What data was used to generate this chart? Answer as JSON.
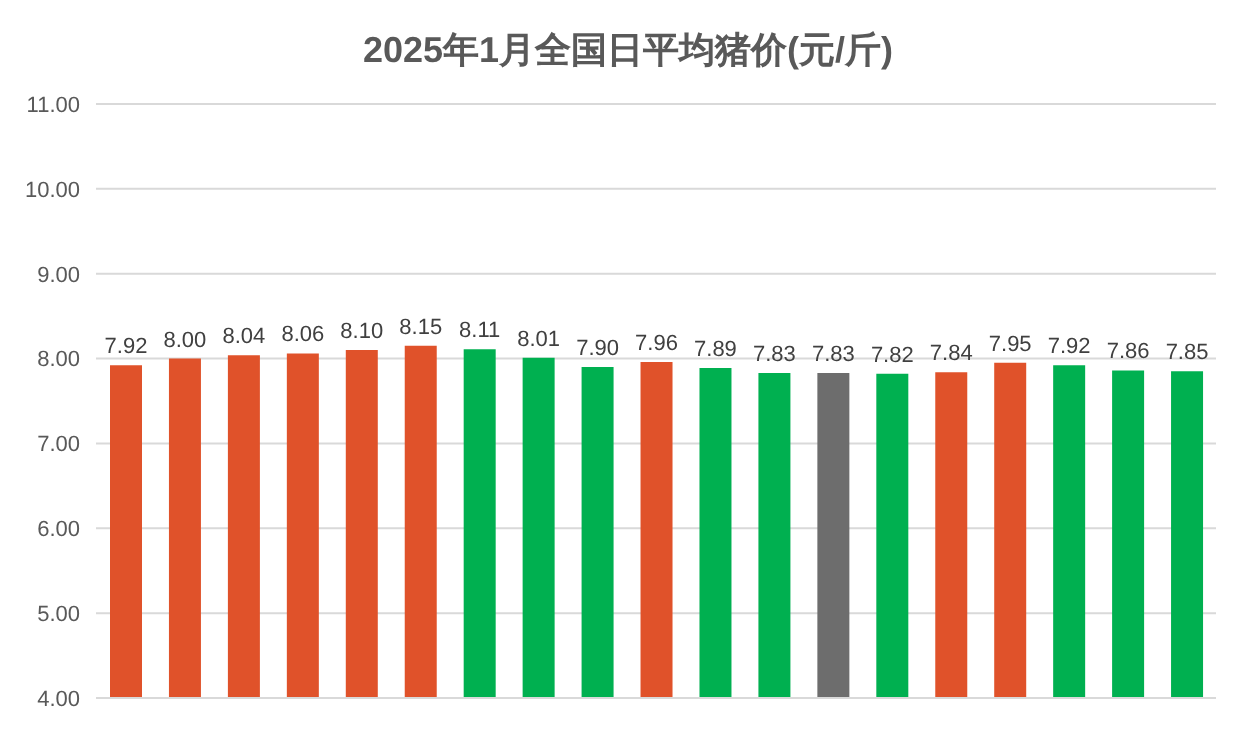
{
  "chart_data": {
    "type": "bar",
    "title": "2025年1月全国日平均猪价(元/斤)",
    "categories": [
      null,
      null,
      null,
      null,
      null,
      null,
      null,
      null,
      null,
      null,
      null,
      null,
      null,
      null,
      null,
      null,
      null,
      null,
      null
    ],
    "values": [
      7.92,
      8.0,
      8.04,
      8.06,
      8.1,
      8.15,
      8.11,
      8.01,
      7.9,
      7.96,
      7.89,
      7.83,
      7.83,
      7.82,
      7.84,
      7.95,
      7.92,
      7.86,
      7.85
    ],
    "value_labels": [
      "7.92",
      "8.00",
      "8.04",
      "8.06",
      "8.10",
      "8.15",
      "8.11",
      "8.01",
      "7.90",
      "7.96",
      "7.89",
      "7.83",
      "7.83",
      "7.82",
      "7.84",
      "7.95",
      "7.92",
      "7.86",
      "7.85"
    ],
    "colors": [
      "#e0522a",
      "#e0522a",
      "#e0522a",
      "#e0522a",
      "#e0522a",
      "#e0522a",
      "#00b050",
      "#00b050",
      "#00b050",
      "#e0522a",
      "#00b050",
      "#00b050",
      "#6d6d6d",
      "#00b050",
      "#e0522a",
      "#e0522a",
      "#00b050",
      "#00b050",
      "#00b050"
    ],
    "ylim": [
      4,
      11
    ],
    "yticks": [
      {
        "value": 4,
        "label": "4.00"
      },
      {
        "value": 5,
        "label": "5.00"
      },
      {
        "value": 6,
        "label": "6.00"
      },
      {
        "value": 7,
        "label": "7.00"
      },
      {
        "value": 8,
        "label": "8.00"
      },
      {
        "value": 9,
        "label": "9.00"
      },
      {
        "value": 10,
        "label": "10.00"
      },
      {
        "value": 11,
        "label": "11.00"
      }
    ],
    "grid": "y",
    "tick_labels": "y"
  }
}
